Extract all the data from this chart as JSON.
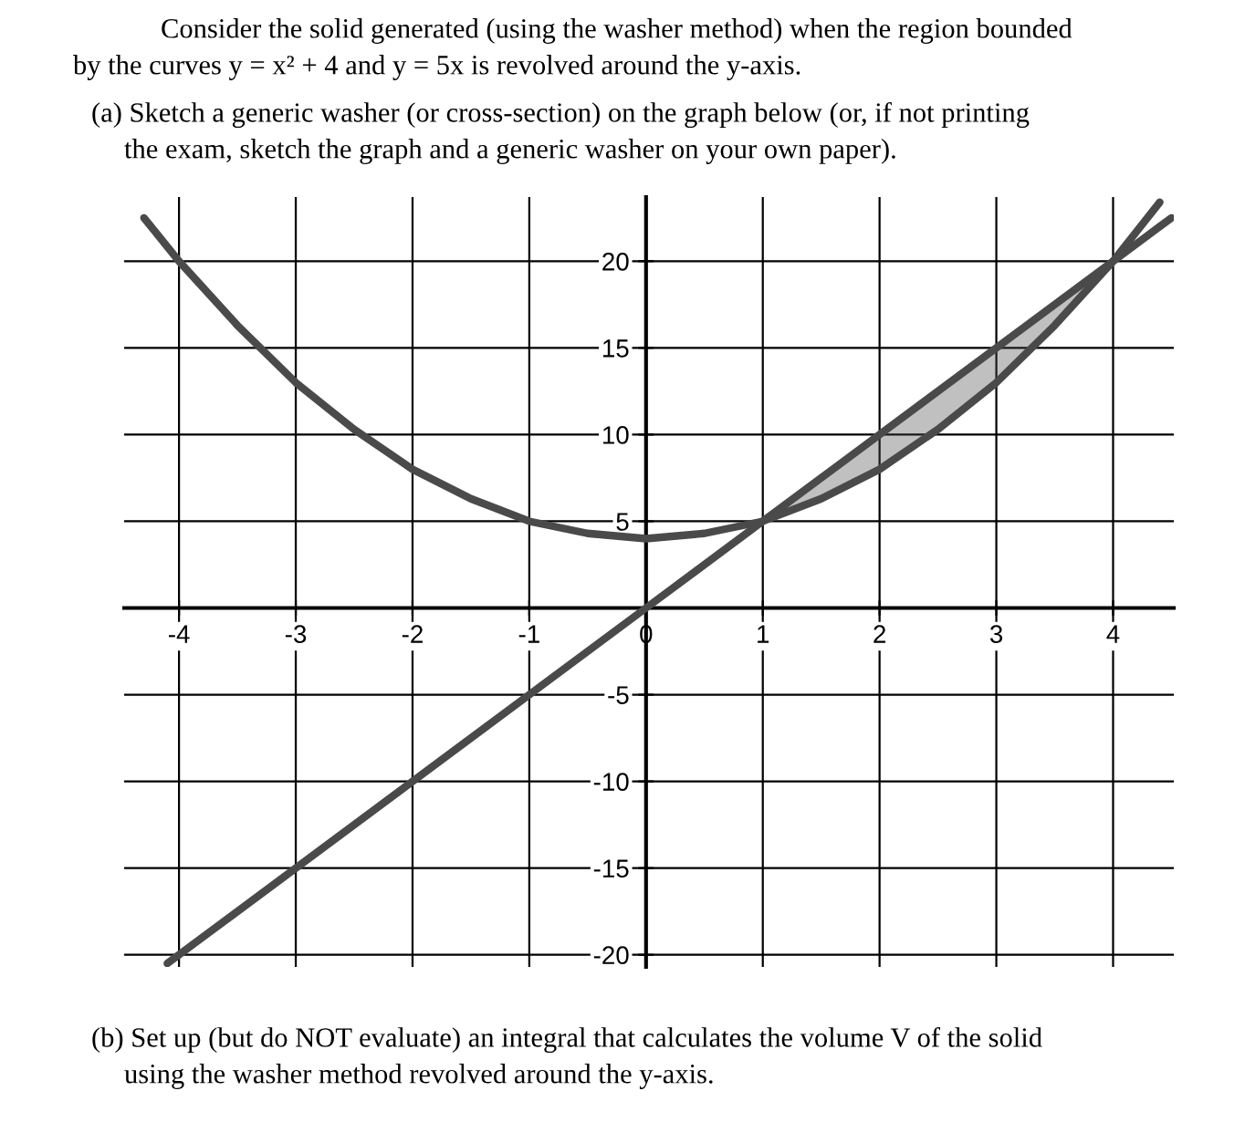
{
  "chart_data": {
    "type": "line",
    "xlim": [
      -4.47,
      4.52
    ],
    "ylim": [
      -20.7,
      23.7
    ],
    "xticks": [
      -4,
      -3,
      -2,
      -1,
      0,
      1,
      2,
      3,
      4
    ],
    "yticks": [
      -20,
      -15,
      -10,
      -5,
      5,
      10,
      15,
      20
    ],
    "grid": true,
    "marker": "none",
    "line_style": "solid",
    "series": [
      {
        "color": "#4a4a4a",
        "x": [
          -4.3,
          -4,
          -3.5,
          -3,
          -2.5,
          -2,
          -1.5,
          -1,
          -0.5,
          0,
          0.5,
          1,
          1.5,
          2,
          2.5,
          3,
          3.5,
          4,
          4.4
        ],
        "values": [
          22.5,
          20,
          16.3,
          13,
          10.3,
          8,
          6.3,
          5,
          4.3,
          4,
          4.3,
          5,
          6.3,
          8,
          10.3,
          13,
          16.3,
          20,
          23.4
        ]
      },
      {
        "color": "#4a4a4a",
        "x": [
          -4.1,
          0,
          1,
          1.5,
          2,
          2.5,
          3,
          3.5,
          4,
          4.5
        ],
        "values": [
          -20.5,
          0,
          5,
          7.5,
          10,
          12.5,
          15,
          17.5,
          20,
          22.5
        ],
        "lower": [
          null,
          null,
          5,
          6.3,
          8,
          10.3,
          13,
          16.3,
          20,
          null
        ],
        "upper": [
          null,
          null,
          5,
          7.5,
          10,
          12.5,
          15,
          17.5,
          20,
          null
        ]
      }
    ],
    "annotations": [
      "Consider the solid generated (using the washer method) when the region bounded",
      "by the curves y = x² + 4 and y = 5x is revolved around the y-axis.",
      "(a) Sketch a generic washer (or cross-section) on the graph below (or, if not printing",
      "the exam, sketch the graph and a generic washer on your own paper).",
      "(b) Set up (but do NOT evaluate) an integral that calculates the volume V of the solid",
      "using the washer method revolved around the y-axis."
    ]
  }
}
